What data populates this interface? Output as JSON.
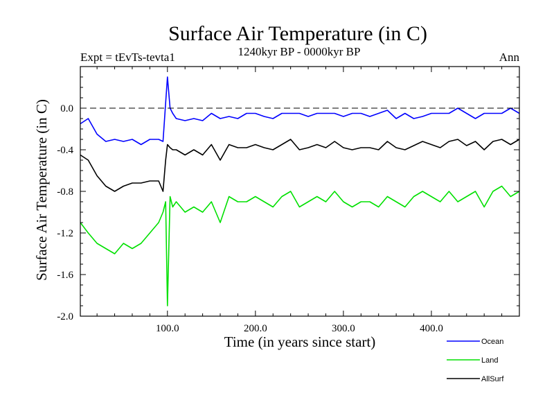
{
  "chart_data": {
    "type": "line",
    "title": "Surface Air Temperature (in C)",
    "subtitle": "1240kyr BP - 0000kyr BP",
    "left_label": "Expt = tEvTs-tevta1",
    "right_label": "Ann",
    "xlabel": "Time (in years since start)",
    "ylabel": "Surface Air Temperature (in C)",
    "xlim": [
      1,
      500
    ],
    "ylim": [
      -2.0,
      0.4
    ],
    "x_ticks": [
      100,
      200,
      300,
      400
    ],
    "x_tick_labels": [
      "100.0",
      "200.0",
      "300.0",
      "400.0"
    ],
    "y_ticks": [
      -2.0,
      -1.6,
      -1.2,
      -0.8,
      -0.4,
      0.0
    ],
    "y_tick_labels": [
      "-2.0",
      "-1.6",
      "-1.2",
      "-0.8",
      "-0.4",
      "0.0"
    ],
    "reference_line": 0.0,
    "legend_position": "bottom-right",
    "x": [
      1,
      10,
      20,
      30,
      40,
      50,
      60,
      70,
      80,
      90,
      95,
      98,
      100,
      103,
      106,
      110,
      120,
      130,
      140,
      150,
      160,
      170,
      180,
      190,
      200,
      210,
      220,
      230,
      240,
      250,
      260,
      270,
      280,
      290,
      300,
      310,
      320,
      330,
      340,
      350,
      360,
      370,
      380,
      390,
      400,
      410,
      420,
      430,
      440,
      450,
      460,
      470,
      480,
      490,
      500
    ],
    "series": [
      {
        "name": "Ocean",
        "color": "#0000ff",
        "values": [
          -0.15,
          -0.1,
          -0.25,
          -0.32,
          -0.3,
          -0.32,
          -0.3,
          -0.35,
          -0.3,
          -0.3,
          -0.32,
          0.05,
          0.3,
          0.0,
          -0.05,
          -0.1,
          -0.12,
          -0.1,
          -0.12,
          -0.05,
          -0.1,
          -0.08,
          -0.1,
          -0.05,
          -0.05,
          -0.08,
          -0.1,
          -0.05,
          -0.05,
          -0.05,
          -0.08,
          -0.05,
          -0.05,
          -0.05,
          -0.08,
          -0.05,
          -0.05,
          -0.08,
          -0.05,
          -0.02,
          -0.1,
          -0.05,
          -0.1,
          -0.08,
          -0.05,
          -0.05,
          -0.05,
          0.0,
          -0.05,
          -0.1,
          -0.05,
          -0.05,
          -0.05,
          0.0,
          -0.05
        ]
      },
      {
        "name": "Land",
        "color": "#00e000",
        "values": [
          -1.1,
          -1.2,
          -1.3,
          -1.35,
          -1.4,
          -1.3,
          -1.35,
          -1.3,
          -1.2,
          -1.1,
          -1.0,
          -0.9,
          -1.9,
          -0.85,
          -0.95,
          -0.9,
          -1.0,
          -0.95,
          -1.0,
          -0.9,
          -1.1,
          -0.85,
          -0.9,
          -0.9,
          -0.85,
          -0.9,
          -0.95,
          -0.85,
          -0.8,
          -0.95,
          -0.9,
          -0.85,
          -0.9,
          -0.8,
          -0.9,
          -0.95,
          -0.9,
          -0.9,
          -0.95,
          -0.85,
          -0.9,
          -0.95,
          -0.85,
          -0.8,
          -0.85,
          -0.9,
          -0.8,
          -0.9,
          -0.85,
          -0.8,
          -0.95,
          -0.8,
          -0.75,
          -0.85,
          -0.8
        ]
      },
      {
        "name": "AllSurf",
        "color": "#000000",
        "values": [
          -0.45,
          -0.5,
          -0.65,
          -0.75,
          -0.8,
          -0.75,
          -0.72,
          -0.72,
          -0.7,
          -0.7,
          -0.8,
          -0.5,
          -0.35,
          -0.38,
          -0.4,
          -0.4,
          -0.45,
          -0.4,
          -0.45,
          -0.35,
          -0.5,
          -0.35,
          -0.38,
          -0.38,
          -0.35,
          -0.38,
          -0.4,
          -0.35,
          -0.3,
          -0.4,
          -0.38,
          -0.35,
          -0.38,
          -0.32,
          -0.38,
          -0.4,
          -0.38,
          -0.38,
          -0.4,
          -0.32,
          -0.38,
          -0.4,
          -0.36,
          -0.32,
          -0.35,
          -0.38,
          -0.32,
          -0.3,
          -0.36,
          -0.32,
          -0.4,
          -0.32,
          -0.3,
          -0.35,
          -0.3
        ]
      }
    ]
  }
}
